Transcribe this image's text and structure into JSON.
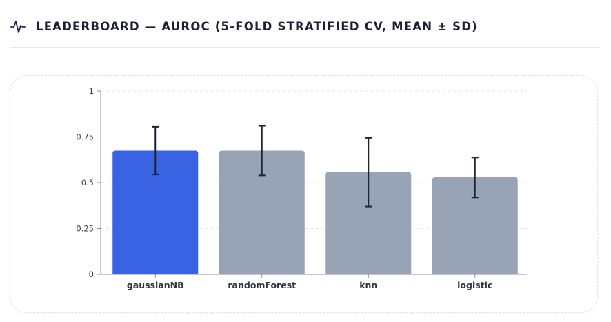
{
  "header": {
    "title": "LEADERBOARD — AUROC (5-FOLD STRATIFIED CV, MEAN ± SD)",
    "icon": "activity-icon"
  },
  "colors": {
    "highlight": "#3a63e4",
    "bar": "#98a4b6",
    "error_bar": "#1c2433",
    "grid": "#e3e6eb",
    "axis": "#8a909c",
    "title": "#1a1f36"
  },
  "chart_data": {
    "type": "bar",
    "title": "",
    "xlabel": "",
    "ylabel": "",
    "categories": [
      "gaussianNB",
      "randomForest",
      "knn",
      "logistic"
    ],
    "values": [
      0.675,
      0.675,
      0.558,
      0.53
    ],
    "error_low": [
      0.545,
      0.54,
      0.37,
      0.42
    ],
    "error_high": [
      0.805,
      0.81,
      0.745,
      0.638
    ],
    "highlight_index": 0,
    "ylim": [
      0,
      1
    ],
    "yticks": [
      0,
      0.25,
      0.5,
      0.75,
      1
    ],
    "ytick_labels": [
      "0",
      "0.25",
      "0.5",
      "0.75",
      "1"
    ],
    "grid": true,
    "legend": "none"
  }
}
